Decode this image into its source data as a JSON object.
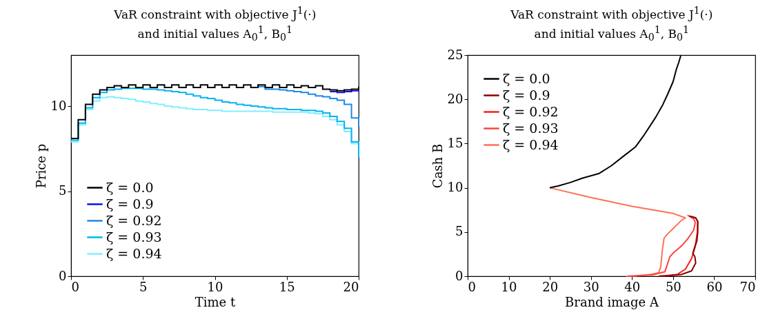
{
  "chart_data": [
    {
      "type": "step",
      "title": "VaR constraint with objective J$^{1}$(·)\nand initial values A$_{0}$$^{1}$, B$_{0}$$^{1}$",
      "xlabel": "Time t",
      "ylabel": "Price p",
      "x": [
        0,
        0.5,
        1,
        1.5,
        2,
        2.5,
        3,
        3.5,
        4,
        4.5,
        5,
        5.5,
        6,
        6.5,
        7,
        7.5,
        8,
        8.5,
        9,
        9.5,
        10,
        10.5,
        11,
        11.5,
        12,
        12.5,
        13,
        13.5,
        14,
        14.5,
        15,
        15.5,
        16,
        16.5,
        17,
        17.5,
        18,
        18.5,
        19,
        19.5,
        20
      ],
      "xlim": [
        0,
        20
      ],
      "xticks": [
        0,
        5,
        10,
        15,
        20
      ],
      "ylim": [
        0,
        13
      ],
      "yticks": [
        0,
        5,
        10
      ],
      "legend": "bottom left",
      "grid": false,
      "series": [
        {
          "name": "ζ = 0.0",
          "color": "#000000",
          "values": [
            8.1,
            9.2,
            10.1,
            10.7,
            10.95,
            11.1,
            11.2,
            11.1,
            11.25,
            11.1,
            11.25,
            11.1,
            11.25,
            11.1,
            11.25,
            11.1,
            11.25,
            11.1,
            11.25,
            11.1,
            11.25,
            11.1,
            11.25,
            11.1,
            11.25,
            11.1,
            11.25,
            11.1,
            11.25,
            11.1,
            11.25,
            11.1,
            11.2,
            11.1,
            11.2,
            11.0,
            10.95,
            10.9,
            10.95,
            11.0,
            11.15
          ]
        },
        {
          "name": "ζ = 0.9",
          "color": "#1010e0",
          "values": [
            null,
            null,
            null,
            null,
            null,
            null,
            null,
            null,
            null,
            null,
            null,
            null,
            null,
            null,
            null,
            null,
            null,
            null,
            null,
            null,
            null,
            null,
            null,
            null,
            null,
            null,
            null,
            null,
            null,
            null,
            null,
            null,
            null,
            null,
            null,
            null,
            10.85,
            10.8,
            10.85,
            10.9,
            11.1
          ]
        },
        {
          "name": "ζ = 0.92",
          "color": "#1e88e5",
          "values": [
            null,
            null,
            null,
            null,
            null,
            null,
            null,
            null,
            null,
            null,
            null,
            null,
            null,
            null,
            null,
            null,
            null,
            null,
            null,
            null,
            null,
            null,
            null,
            null,
            null,
            null,
            11.15,
            11.0,
            11.0,
            10.95,
            10.9,
            10.85,
            10.8,
            10.7,
            10.6,
            10.55,
            10.45,
            10.35,
            10.1,
            9.3,
            8.8
          ]
        },
        {
          "name": "ζ = 0.93",
          "color": "#00b4f0",
          "values": [
            8.0,
            9.0,
            9.9,
            10.5,
            10.8,
            10.95,
            11.0,
            11.05,
            11.05,
            11.05,
            11.0,
            11.0,
            10.95,
            10.9,
            10.85,
            10.8,
            10.7,
            10.6,
            10.5,
            10.45,
            10.35,
            10.25,
            10.2,
            10.1,
            10.05,
            10.0,
            9.95,
            9.9,
            9.85,
            9.85,
            9.8,
            9.8,
            9.75,
            9.75,
            9.7,
            9.6,
            9.4,
            9.1,
            8.7,
            7.9,
            7.0
          ]
        },
        {
          "name": "ζ = 0.94",
          "color": "#7fefff",
          "values": [
            7.9,
            8.9,
            9.8,
            10.3,
            10.5,
            10.55,
            10.5,
            10.45,
            10.4,
            10.3,
            10.25,
            10.15,
            10.1,
            10.0,
            9.95,
            9.9,
            9.85,
            9.8,
            9.8,
            9.75,
            9.75,
            9.7,
            9.7,
            9.7,
            9.7,
            9.7,
            9.7,
            9.7,
            9.65,
            9.65,
            9.65,
            9.65,
            9.65,
            9.6,
            9.55,
            9.4,
            9.2,
            8.9,
            8.5,
            7.8,
            7.0
          ]
        }
      ]
    },
    {
      "type": "line",
      "title": "VaR constraint with objective J$^{1}$(·)\nand initial values A$_{0}$$^{1}$, B$_{0}$$^{1}$",
      "xlabel": "Brand image A",
      "ylabel": "Cash B",
      "xlim": [
        0,
        70
      ],
      "xticks": [
        0,
        10,
        20,
        30,
        40,
        50,
        60,
        70
      ],
      "ylim": [
        0,
        25
      ],
      "yticks": [
        0,
        5,
        10,
        15,
        20,
        25
      ],
      "legend": "top left",
      "grid": false,
      "series": [
        {
          "name": "ζ = 0.0",
          "color": "#000000",
          "x": [
            20,
            22,
            25,
            28,
            31.9,
            35,
            38,
            40.8,
            43,
            45.8,
            47.5,
            48.7,
            50,
            50.8,
            51.4,
            51.9
          ],
          "values": [
            10,
            10.2,
            10.6,
            11.1,
            11.6,
            12.5,
            13.6,
            14.6,
            16,
            18,
            19.4,
            20.6,
            22,
            23.4,
            24.2,
            25
          ]
        },
        {
          "name": "ζ = 0.9",
          "color": "#8b0000",
          "x": [
            54,
            55.5,
            56,
            56,
            55.8,
            55.2,
            54.8,
            55.3,
            55.5,
            54.5,
            52,
            49,
            46.5
          ],
          "values": [
            6.8,
            6.6,
            6.2,
            5,
            4,
            3.2,
            2.6,
            2.2,
            1.5,
            0.6,
            0.2,
            0.05,
            0
          ]
        },
        {
          "name": "ζ = 0.92",
          "color": "#ff1a1a",
          "x": [
            54,
            55.5,
            56,
            55.9,
            55.4,
            54.5,
            53,
            51,
            48,
            46.5
          ],
          "values": [
            6.8,
            6.6,
            6.2,
            5,
            3.4,
            2,
            0.8,
            0.2,
            0.05,
            0
          ]
        },
        {
          "name": "ζ = 0.93",
          "color": "#ff4040",
          "x": [
            53.5,
            55,
            55.4,
            55,
            53.5,
            52,
            50,
            49.2,
            48.5,
            48,
            45,
            41,
            39
          ],
          "values": [
            6.9,
            6.5,
            6.1,
            5.2,
            4.2,
            3.4,
            2.6,
            2.2,
            1.2,
            0.5,
            0.15,
            0.03,
            0
          ]
        },
        {
          "name": "ζ = 0.94",
          "color": "#ff7058",
          "x": [
            20,
            30,
            40,
            50,
            53,
            52,
            50,
            48.5,
            47.8,
            47.4,
            47,
            46.5,
            44,
            41,
            38.6
          ],
          "values": [
            10,
            8.9,
            7.9,
            7.1,
            6.6,
            6.3,
            5.4,
            4.7,
            4.3,
            3,
            1.1,
            0.4,
            0.15,
            0.05,
            0
          ]
        }
      ]
    }
  ]
}
